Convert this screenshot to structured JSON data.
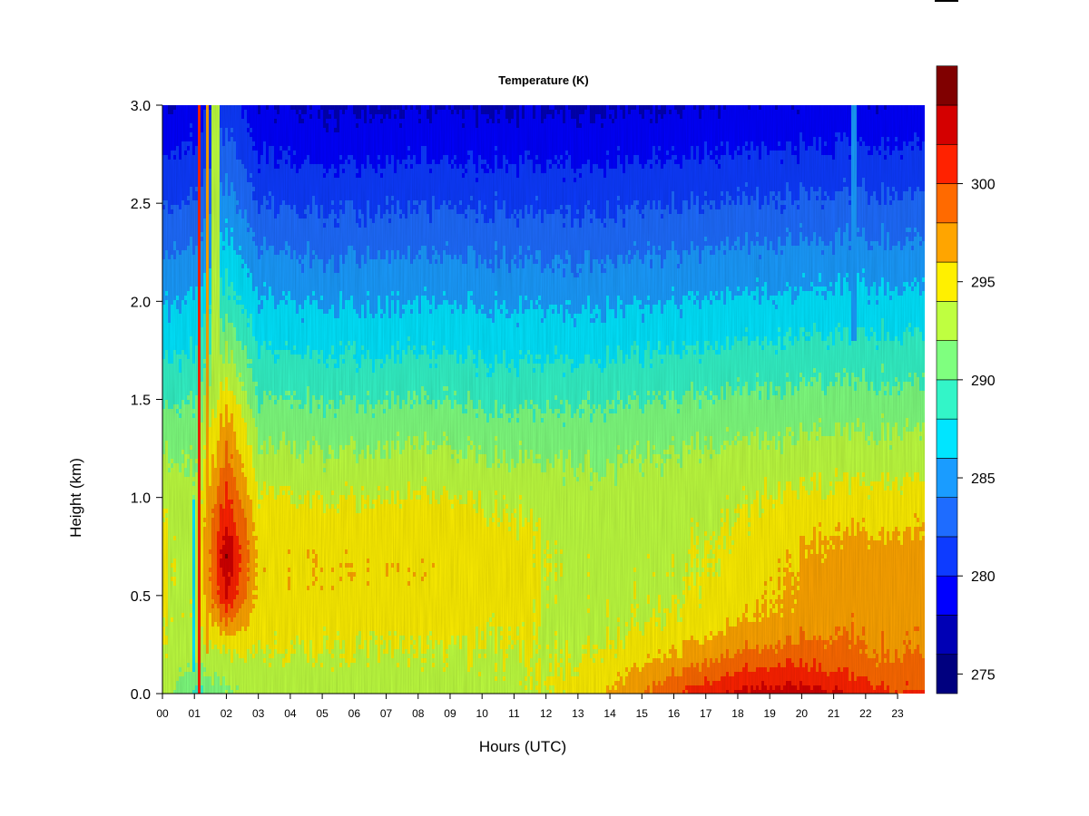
{
  "chart_data": {
    "type": "heatmap",
    "title": "Temperature (K)",
    "xlabel": "Hours (UTC)",
    "ylabel": "Height (km)",
    "xlim": [
      0,
      23.85
    ],
    "ylim": [
      0.0,
      3.0
    ],
    "x_ticks": [
      "00",
      "01",
      "02",
      "03",
      "04",
      "05",
      "06",
      "07",
      "08",
      "09",
      "10",
      "11",
      "12",
      "13",
      "14",
      "15",
      "16",
      "17",
      "18",
      "19",
      "20",
      "21",
      "22",
      "23"
    ],
    "y_ticks": [
      "0.0",
      "0.5",
      "1.0",
      "1.5",
      "2.0",
      "2.5",
      "3.0"
    ],
    "colorbar": {
      "min": 274,
      "max": 304,
      "step": 2,
      "tick_labels": [
        "275",
        "280",
        "285",
        "290",
        "295",
        "300"
      ],
      "colors": [
        "#00007F",
        "#0000B5",
        "#0000FF",
        "#0D3BFF",
        "#1E6CFF",
        "#1A9CFF",
        "#00E5FF",
        "#33F5C8",
        "#7FFF7F",
        "#BFFF40",
        "#FFF000",
        "#FFA500",
        "#FF6A00",
        "#FF2200",
        "#D40000",
        "#800000"
      ]
    },
    "height_km": [
      0.0,
      0.05,
      0.1,
      0.2,
      0.3,
      0.4,
      0.5,
      0.6,
      0.7,
      0.8,
      0.9,
      1.0,
      1.1,
      1.2,
      1.3,
      1.4,
      1.5,
      1.6,
      1.8,
      2.0,
      2.2,
      2.4,
      2.6,
      2.8,
      3.0
    ],
    "profiles": [
      {
        "hour": 0.0,
        "temp_K": [
          293.3,
          293.4,
          293.5,
          293.6,
          293.8,
          294.0,
          294.2,
          294.4,
          294.5,
          294.3,
          293.9,
          293.3,
          292.6,
          292.0,
          291.3,
          290.5,
          289.6,
          288.7,
          287.1,
          285.6,
          284.1,
          282.5,
          280.9,
          279.4,
          277.9
        ]
      },
      {
        "hour": 1.0,
        "temp_K": [
          289.5,
          290.5,
          291.5,
          292.6,
          293.5,
          293.4,
          293.1,
          293.0,
          292.8,
          292.7,
          292.7,
          292.5,
          292.2,
          291.8,
          291.3,
          290.7,
          290.0,
          289.2,
          287.8,
          286.3,
          284.8,
          283.2,
          281.6,
          280.0,
          278.6
        ]
      },
      {
        "hour": 2.0,
        "temp_K": [
          291.5,
          292.1,
          292.8,
          293.8,
          296.0,
          299.5,
          302.0,
          303.2,
          303.6,
          303.0,
          301.5,
          300.5,
          299.5,
          298.6,
          297.8,
          296.8,
          295.5,
          294.0,
          291.5,
          289.0,
          287.3,
          285.7,
          284.1,
          282.6,
          281.2
        ]
      },
      {
        "hour": 3.0,
        "temp_K": [
          292.6,
          292.9,
          293.2,
          293.8,
          294.3,
          294.8,
          295.2,
          295.4,
          295.4,
          295.2,
          294.8,
          294.1,
          293.4,
          292.6,
          291.8,
          291.0,
          290.1,
          289.2,
          287.6,
          286.1,
          284.5,
          282.8,
          281.1,
          279.5,
          278.0
        ]
      },
      {
        "hour": 5.0,
        "temp_K": [
          292.9,
          293.2,
          293.4,
          293.9,
          294.5,
          295.0,
          295.4,
          295.6,
          295.5,
          295.2,
          294.6,
          293.8,
          293.0,
          292.2,
          291.4,
          290.6,
          289.8,
          288.9,
          287.3,
          285.7,
          284.1,
          282.4,
          280.7,
          279.0,
          277.6
        ]
      },
      {
        "hour": 8.0,
        "temp_K": [
          292.8,
          293.1,
          293.3,
          293.8,
          294.4,
          294.9,
          295.3,
          295.6,
          295.5,
          295.3,
          294.9,
          294.3,
          293.5,
          292.6,
          291.8,
          290.9,
          290.0,
          289.1,
          287.5,
          286.0,
          284.4,
          282.7,
          281.0,
          279.4,
          277.9
        ]
      },
      {
        "hour": 11.0,
        "temp_K": [
          293.2,
          293.4,
          293.6,
          293.9,
          294.3,
          294.6,
          294.9,
          295.0,
          294.9,
          294.6,
          294.1,
          293.5,
          292.8,
          292.0,
          291.2,
          290.4,
          289.6,
          288.8,
          287.2,
          285.7,
          284.1,
          282.5,
          280.8,
          279.2,
          277.7
        ]
      },
      {
        "hour": 12.5,
        "temp_K": [
          294.3,
          294.2,
          294.0,
          293.6,
          293.3,
          293.2,
          293.3,
          293.4,
          293.4,
          293.3,
          293.1,
          292.8,
          292.4,
          291.8,
          291.1,
          290.3,
          289.5,
          288.7,
          287.1,
          285.5,
          283.9,
          282.3,
          280.7,
          279.1,
          277.6
        ]
      },
      {
        "hour": 14.0,
        "temp_K": [
          296.5,
          296.0,
          295.4,
          294.4,
          293.8,
          293.5,
          293.4,
          293.4,
          293.3,
          293.2,
          293.0,
          292.8,
          292.4,
          291.9,
          291.3,
          290.6,
          289.8,
          289.0,
          287.4,
          285.8,
          284.2,
          282.6,
          280.9,
          279.3,
          277.8
        ]
      },
      {
        "hour": 16.0,
        "temp_K": [
          299.8,
          298.9,
          297.9,
          296.2,
          295.0,
          294.2,
          293.8,
          293.6,
          293.5,
          293.3,
          293.2,
          293.0,
          292.7,
          292.2,
          291.6,
          290.9,
          290.1,
          289.3,
          287.6,
          286.0,
          284.4,
          282.7,
          281.0,
          279.4,
          277.9
        ]
      },
      {
        "hour": 18.0,
        "temp_K": [
          302.2,
          301.2,
          300.0,
          298.0,
          296.6,
          295.5,
          294.9,
          294.6,
          294.4,
          294.2,
          293.9,
          293.5,
          293.0,
          292.4,
          291.7,
          291.0,
          290.2,
          289.4,
          287.8,
          286.2,
          284.6,
          282.9,
          281.2,
          279.6,
          278.0
        ]
      },
      {
        "hour": 19.5,
        "temp_K": [
          303.1,
          302.2,
          301.1,
          299.0,
          297.5,
          296.6,
          296.2,
          296.0,
          295.8,
          295.3,
          294.8,
          294.2,
          293.6,
          292.9,
          292.2,
          291.4,
          290.6,
          289.8,
          288.1,
          286.5,
          284.9,
          283.2,
          281.5,
          279.9,
          278.3
        ]
      },
      {
        "hour": 21.0,
        "temp_K": [
          302.4,
          301.5,
          300.4,
          298.8,
          297.9,
          297.3,
          297.0,
          297.0,
          296.7,
          296.0,
          295.3,
          294.6,
          293.8,
          293.1,
          292.3,
          291.5,
          290.7,
          289.9,
          288.2,
          286.6,
          285.0,
          283.3,
          281.6,
          280.0,
          278.4
        ]
      },
      {
        "hour": 22.5,
        "temp_K": [
          300.4,
          299.8,
          299.1,
          298.0,
          297.5,
          297.2,
          297.0,
          297.0,
          296.8,
          296.2,
          295.5,
          294.7,
          293.9,
          293.1,
          292.3,
          291.5,
          290.7,
          289.9,
          288.2,
          286.6,
          285.0,
          283.3,
          281.6,
          280.0,
          278.4
        ]
      },
      {
        "hour": 23.85,
        "temp_K": [
          299.9,
          299.3,
          298.7,
          297.8,
          297.4,
          297.1,
          297.0,
          296.9,
          296.6,
          296.0,
          295.3,
          294.5,
          293.7,
          292.9,
          292.1,
          291.3,
          290.5,
          289.7,
          288.0,
          286.4,
          284.8,
          283.1,
          281.4,
          279.8,
          278.2
        ]
      }
    ],
    "features": [
      {
        "hour_start": 1.08,
        "hour_end": 1.2,
        "height_min_km": 0.0,
        "height_max_km": 3.0,
        "temp_K": 301.5
      },
      {
        "hour_start": 1.35,
        "hour_end": 1.42,
        "height_min_km": 0.2,
        "height_max_km": 3.0,
        "temp_K": 297.5
      },
      {
        "hour_start": 1.5,
        "hour_end": 1.8,
        "height_min_km": 1.6,
        "height_max_km": 3.0,
        "temp_K": 293.5
      },
      {
        "hour_start": 0.95,
        "hour_end": 1.05,
        "height_min_km": 0.1,
        "height_max_km": 1.0,
        "temp_K": 286.0
      },
      {
        "hour_start": 21.55,
        "hour_end": 21.7,
        "height_min_km": 1.8,
        "height_max_km": 3.0,
        "temp_K": 285.0
      }
    ]
  }
}
